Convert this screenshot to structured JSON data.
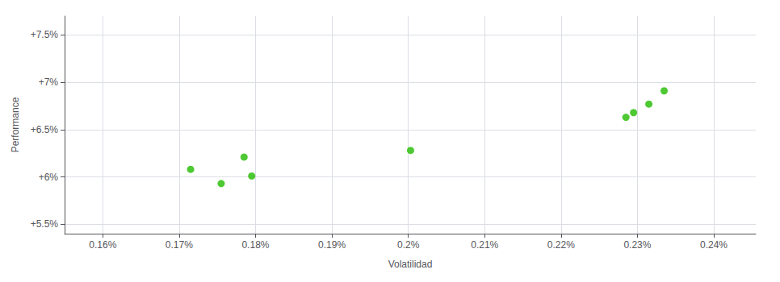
{
  "chart_data": {
    "type": "scatter",
    "xlabel": "Volatilidad",
    "ylabel": "Performance",
    "x": [
      0.1715,
      0.1755,
      0.1785,
      0.1795,
      0.2003,
      0.2285,
      0.2295,
      0.2315,
      0.2335
    ],
    "values": [
      0.0608,
      0.0593,
      0.0621,
      0.0601,
      0.0628,
      0.0663,
      0.0668,
      0.0677,
      0.0691
    ],
    "color": "#22bb00",
    "xlim": [
      0.155,
      0.2455
    ],
    "ylim": [
      0.054,
      0.077
    ],
    "xticks": [
      {
        "value": 0.16,
        "label": "0.16%"
      },
      {
        "value": 0.17,
        "label": "0.17%"
      },
      {
        "value": 0.18,
        "label": "0.18%"
      },
      {
        "value": 0.19,
        "label": "0.19%"
      },
      {
        "value": 0.2,
        "label": "0.2%"
      },
      {
        "value": 0.21,
        "label": "0.21%"
      },
      {
        "value": 0.22,
        "label": "0.22%"
      },
      {
        "value": 0.23,
        "label": "0.23%"
      },
      {
        "value": 0.24,
        "label": "0.24%"
      }
    ],
    "yticks": [
      {
        "value": 0.055,
        "label": "+5.5%"
      },
      {
        "value": 0.06,
        "label": "+6%"
      },
      {
        "value": 0.065,
        "label": "+6.5%"
      },
      {
        "value": 0.07,
        "label": "+7%"
      },
      {
        "value": 0.075,
        "label": "+7.5%"
      }
    ],
    "grid": true
  }
}
